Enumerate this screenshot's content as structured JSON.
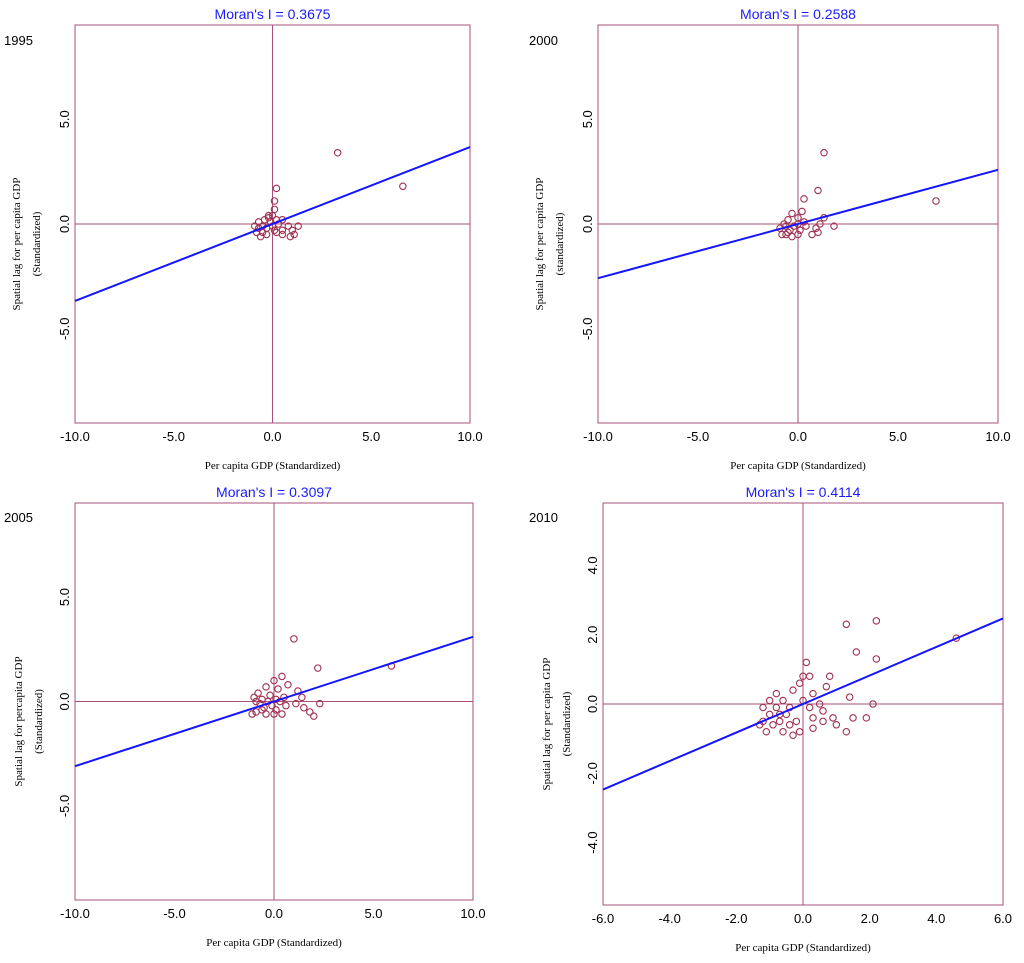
{
  "chart_data": [
    {
      "type": "scatter",
      "year": "1995",
      "title": "Moran's I = 0.3675",
      "xlabel": "Per capita GDP (Standardized)",
      "ylabel_lines": [
        "Spatial lag for per capita GDP",
        "(Standardized)"
      ],
      "xlim": [
        -10,
        10
      ],
      "ylim": [
        -9.5,
        9.5
      ],
      "xticks": [
        -10,
        -5,
        0,
        5,
        10
      ],
      "xtick_labels": [
        "-10.0",
        "-5.0",
        "0.0",
        "5.0",
        "10.0"
      ],
      "yticks": [
        5,
        0,
        -5
      ],
      "ytick_labels": [
        "5.0",
        "0.0",
        "-5.0"
      ],
      "slope": 0.3675,
      "points": [
        [
          3.3,
          3.4
        ],
        [
          6.6,
          1.8
        ],
        [
          0.2,
          1.7
        ],
        [
          0.1,
          1.1
        ],
        [
          0.1,
          0.7
        ],
        [
          -0.2,
          0.4
        ],
        [
          0.0,
          0.4
        ],
        [
          -0.4,
          0.2
        ],
        [
          0.2,
          0.2
        ],
        [
          0.5,
          0.2
        ],
        [
          -0.7,
          0.1
        ],
        [
          -0.1,
          0.1
        ],
        [
          0.3,
          0.0
        ],
        [
          -0.9,
          -0.1
        ],
        [
          -0.5,
          -0.1
        ],
        [
          0.0,
          -0.1
        ],
        [
          0.8,
          -0.1
        ],
        [
          1.3,
          -0.1
        ],
        [
          -0.7,
          -0.2
        ],
        [
          -0.3,
          -0.2
        ],
        [
          0.1,
          -0.3
        ],
        [
          1.0,
          -0.3
        ],
        [
          -0.8,
          -0.4
        ],
        [
          -0.5,
          -0.4
        ],
        [
          0.2,
          -0.4
        ],
        [
          0.5,
          -0.5
        ],
        [
          1.1,
          -0.5
        ],
        [
          -0.6,
          -0.6
        ],
        [
          -0.3,
          -0.5
        ],
        [
          0.9,
          -0.6
        ],
        [
          0.5,
          -0.3
        ],
        [
          -0.2,
          0.3
        ]
      ]
    },
    {
      "type": "scatter",
      "year": "2000",
      "title": "Moran's I = 0.2588",
      "xlabel": "Per capita GDP (Standardized)",
      "ylabel_lines": [
        "Spatial lag for per capita GDP",
        "(standardized)"
      ],
      "xlim": [
        -10,
        10
      ],
      "ylim": [
        -9.5,
        9.5
      ],
      "xticks": [
        -10,
        -5,
        0,
        5,
        10
      ],
      "xtick_labels": [
        "-10.0",
        "-5.0",
        "0.0",
        "5.0",
        "10.0"
      ],
      "yticks": [
        5,
        0,
        -5
      ],
      "ytick_labels": [
        "5.0",
        "0.0",
        "-5.0"
      ],
      "slope": 0.2588,
      "points": [
        [
          1.3,
          3.4
        ],
        [
          1.0,
          1.6
        ],
        [
          6.9,
          1.1
        ],
        [
          0.3,
          1.2
        ],
        [
          0.2,
          0.6
        ],
        [
          -0.3,
          0.5
        ],
        [
          0.0,
          0.3
        ],
        [
          1.3,
          0.3
        ],
        [
          -0.5,
          0.2
        ],
        [
          0.3,
          0.1
        ],
        [
          -0.7,
          0.0
        ],
        [
          0.0,
          0.0
        ],
        [
          1.1,
          0.0
        ],
        [
          -0.6,
          -0.1
        ],
        [
          -0.2,
          -0.1
        ],
        [
          0.4,
          -0.1
        ],
        [
          1.8,
          -0.1
        ],
        [
          -0.9,
          -0.2
        ],
        [
          -0.4,
          -0.3
        ],
        [
          0.1,
          -0.3
        ],
        [
          0.9,
          -0.2
        ],
        [
          -0.8,
          -0.5
        ],
        [
          -0.5,
          -0.4
        ],
        [
          0.0,
          -0.5
        ],
        [
          1.0,
          -0.4
        ],
        [
          -0.6,
          -0.5
        ],
        [
          0.7,
          -0.5
        ],
        [
          -0.3,
          -0.6
        ]
      ]
    },
    {
      "type": "scatter",
      "year": "2005",
      "title": "Moran's I = 0.3097",
      "xlabel": "Per capita GDP (Standardized)",
      "ylabel_lines": [
        "Spatial lag for percapita GDP",
        "(Standardized)"
      ],
      "xlim": [
        -10,
        10
      ],
      "ylim": [
        -9.5,
        9.5
      ],
      "xticks": [
        -10,
        -5,
        0,
        5,
        10
      ],
      "xtick_labels": [
        "-10.0",
        "-5.0",
        "0.0",
        "5.0",
        "10.0"
      ],
      "yticks": [
        5,
        0,
        -5
      ],
      "ytick_labels": [
        "5.0",
        "0.0",
        "-5.0"
      ],
      "slope": 0.3097,
      "points": [
        [
          1.0,
          3.0
        ],
        [
          5.9,
          1.7
        ],
        [
          2.2,
          1.6
        ],
        [
          0.4,
          1.2
        ],
        [
          0.0,
          1.0
        ],
        [
          0.7,
          0.8
        ],
        [
          1.2,
          0.5
        ],
        [
          -0.4,
          0.7
        ],
        [
          0.2,
          0.6
        ],
        [
          -0.8,
          0.4
        ],
        [
          -0.2,
          0.3
        ],
        [
          0.5,
          0.2
        ],
        [
          1.4,
          0.2
        ],
        [
          -1.0,
          0.2
        ],
        [
          -0.6,
          0.1
        ],
        [
          0.1,
          0.1
        ],
        [
          2.3,
          -0.1
        ],
        [
          -0.9,
          0.0
        ],
        [
          -0.3,
          0.0
        ],
        [
          0.3,
          0.0
        ],
        [
          1.1,
          -0.1
        ],
        [
          -0.7,
          -0.1
        ],
        [
          -0.1,
          -0.2
        ],
        [
          0.6,
          -0.2
        ],
        [
          1.5,
          -0.3
        ],
        [
          -0.5,
          -0.3
        ],
        [
          0.1,
          -0.4
        ],
        [
          1.8,
          -0.5
        ],
        [
          2.0,
          -0.7
        ],
        [
          -0.9,
          -0.5
        ],
        [
          -0.4,
          -0.6
        ],
        [
          0.4,
          -0.6
        ],
        [
          -0.6,
          -0.4
        ],
        [
          0.0,
          -0.6
        ],
        [
          -1.1,
          -0.6
        ]
      ]
    },
    {
      "type": "scatter",
      "year": "2010",
      "title": "Moran's I = 0.4114",
      "xlabel": "Per capita GDP  (Standardized)",
      "ylabel_lines": [
        "Spatial lag for per capita GDP",
        "(Standardized)"
      ],
      "xlim": [
        -6,
        6
      ],
      "ylim": [
        -5.8,
        5.8
      ],
      "xticks": [
        -6,
        -4,
        -2,
        0,
        2,
        4,
        6
      ],
      "xtick_labels": [
        "-6.0",
        "-4.0",
        "-2.0",
        "0.0",
        "2.0",
        "4.0",
        "6.0"
      ],
      "yticks": [
        4,
        2,
        0,
        -2,
        -4
      ],
      "ytick_labels": [
        "4.0",
        "2.0",
        "0.0",
        "-2.0",
        "-4.0"
      ],
      "slope": 0.4114,
      "points": [
        [
          4.6,
          1.9
        ],
        [
          2.2,
          2.4
        ],
        [
          1.3,
          2.3
        ],
        [
          1.6,
          1.5
        ],
        [
          2.2,
          1.3
        ],
        [
          0.1,
          1.2
        ],
        [
          0.0,
          0.8
        ],
        [
          0.2,
          0.8
        ],
        [
          0.8,
          0.8
        ],
        [
          -0.1,
          0.6
        ],
        [
          0.7,
          0.5
        ],
        [
          -0.8,
          0.3
        ],
        [
          -0.3,
          0.4
        ],
        [
          0.3,
          0.3
        ],
        [
          1.4,
          0.2
        ],
        [
          -1.0,
          0.1
        ],
        [
          -0.6,
          0.1
        ],
        [
          0.0,
          0.1
        ],
        [
          0.5,
          0.0
        ],
        [
          2.1,
          0.0
        ],
        [
          -1.2,
          -0.1
        ],
        [
          -0.8,
          -0.1
        ],
        [
          -0.4,
          -0.1
        ],
        [
          0.2,
          -0.1
        ],
        [
          0.6,
          -0.2
        ],
        [
          -1.0,
          -0.3
        ],
        [
          -0.5,
          -0.3
        ],
        [
          0.3,
          -0.4
        ],
        [
          0.9,
          -0.4
        ],
        [
          1.5,
          -0.4
        ],
        [
          1.9,
          -0.4
        ],
        [
          -1.2,
          -0.5
        ],
        [
          -0.7,
          -0.5
        ],
        [
          -0.2,
          -0.5
        ],
        [
          0.6,
          -0.5
        ],
        [
          -0.9,
          -0.6
        ],
        [
          -0.4,
          -0.6
        ],
        [
          1.0,
          -0.6
        ],
        [
          -1.1,
          -0.8
        ],
        [
          -0.6,
          -0.8
        ],
        [
          -0.1,
          -0.8
        ],
        [
          1.3,
          -0.8
        ],
        [
          -1.3,
          -0.6
        ],
        [
          -0.3,
          -0.9
        ],
        [
          0.3,
          -0.7
        ],
        [
          -0.7,
          -0.3
        ]
      ]
    }
  ]
}
